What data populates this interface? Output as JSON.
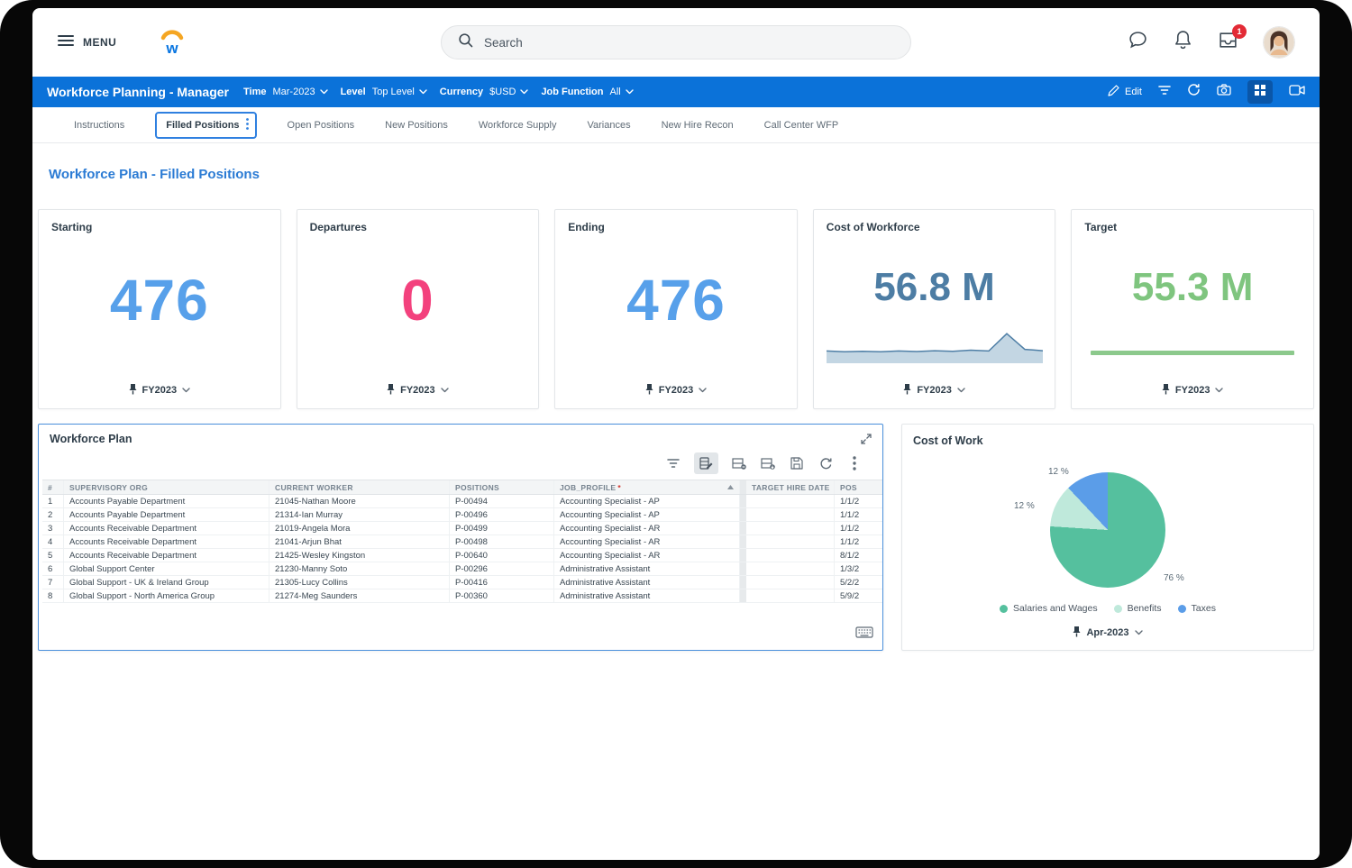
{
  "topbar": {
    "menu_label": "MENU",
    "search_placeholder": "Search",
    "inbox_badge": "1"
  },
  "bluebar": {
    "title": "Workforce Planning - Manager",
    "filters": [
      {
        "label": "Time",
        "value": "Mar-2023"
      },
      {
        "label": "Level",
        "value": "Top Level"
      },
      {
        "label": "Currency",
        "value": "$USD"
      },
      {
        "label": "Job Function",
        "value": "All"
      }
    ],
    "edit_label": "Edit"
  },
  "tabs": [
    {
      "label": "Instructions"
    },
    {
      "label": "Filled Positions"
    },
    {
      "label": "Open Positions"
    },
    {
      "label": "New Positions"
    },
    {
      "label": "Workforce Supply"
    },
    {
      "label": "Variances"
    },
    {
      "label": "New Hire Recon"
    },
    {
      "label": "Call Center WFP"
    }
  ],
  "page_title": "Workforce Plan - Filled Positions",
  "kpis": [
    {
      "title": "Starting",
      "value": "476",
      "color": "#57a0ea",
      "period": "FY2023"
    },
    {
      "title": "Departures",
      "value": "0",
      "color": "#f3417d",
      "period": "FY2023"
    },
    {
      "title": "Ending",
      "value": "476",
      "color": "#57a0ea",
      "period": "FY2023"
    },
    {
      "title": "Cost of Workforce",
      "value": "56.8 M",
      "color": "#4d7da4",
      "period": "FY2023"
    },
    {
      "title": "Target",
      "value": "55.3 M",
      "color": "#7fc57f",
      "period": "FY2023",
      "bar_color": "#8cc98c"
    }
  ],
  "workforce_plan": {
    "title": "Workforce Plan",
    "columns": [
      "#",
      "SUPERVISORY ORG",
      "CURRENT WORKER",
      "POSITIONS",
      "JOB_PROFILE",
      "TARGET HIRE DATE",
      "POS"
    ],
    "required_marker": "*",
    "rows": [
      {
        "num": "1",
        "org": "Accounts Payable Department",
        "worker": "21045-Nathan Moore",
        "position": "P-00494",
        "job_profile": "Accounting Specialist - AP",
        "target_hire_date": "",
        "pos": "1/1/2"
      },
      {
        "num": "2",
        "org": "Accounts Payable Department",
        "worker": "21314-Ian Murray",
        "position": "P-00496",
        "job_profile": "Accounting Specialist - AP",
        "target_hire_date": "",
        "pos": "1/1/2"
      },
      {
        "num": "3",
        "org": "Accounts Receivable Department",
        "worker": "21019-Angela Mora",
        "position": "P-00499",
        "job_profile": "Accounting Specialist - AR",
        "target_hire_date": "",
        "pos": "1/1/2"
      },
      {
        "num": "4",
        "org": "Accounts Receivable Department",
        "worker": "21041-Arjun Bhat",
        "position": "P-00498",
        "job_profile": "Accounting Specialist - AR",
        "target_hire_date": "",
        "pos": "1/1/2"
      },
      {
        "num": "5",
        "org": "Accounts Receivable Department",
        "worker": "21425-Wesley Kingston",
        "position": "P-00640",
        "job_profile": "Accounting Specialist - AR",
        "target_hire_date": "",
        "pos": "8/1/2"
      },
      {
        "num": "6",
        "org": "Global Support Center",
        "worker": "21230-Manny Soto",
        "position": "P-00296",
        "job_profile": "Administrative Assistant",
        "target_hire_date": "",
        "pos": "1/3/2"
      },
      {
        "num": "7",
        "org": "Global Support - UK & Ireland Group",
        "worker": "21305-Lucy Collins",
        "position": "P-00416",
        "job_profile": "Administrative Assistant",
        "target_hire_date": "",
        "pos": "5/2/2"
      },
      {
        "num": "8",
        "org": "Global Support - North America Group",
        "worker": "21274-Meg Saunders",
        "position": "P-00360",
        "job_profile": "Administrative Assistant",
        "target_hire_date": "",
        "pos": "5/9/2"
      }
    ]
  },
  "cost_of_work": {
    "title": "Cost of Work",
    "period": "Apr-2023"
  },
  "chart_data": [
    {
      "type": "pie",
      "title": "Cost of Work",
      "period": "Apr-2023",
      "legend_position": "bottom",
      "slices": [
        {
          "label": "Salaries and Wages",
          "pct": 76,
          "pct_label": "76 %",
          "color": "#55c09e"
        },
        {
          "label": "Benefits",
          "pct": 12,
          "pct_label": "12 %",
          "color": "#bfe9db"
        },
        {
          "label": "Taxes",
          "pct": 12,
          "pct_label": "12 %",
          "color": "#5b9de8"
        }
      ]
    },
    {
      "type": "area",
      "title": "Cost of Workforce trend (FY2023 sparkline)",
      "values": [
        3.2,
        2.9,
        3.1,
        2.9,
        3.2,
        3.0,
        3.3,
        3.1,
        3.5,
        3.2,
        9.6,
        3.8,
        3.3
      ],
      "line_color": "#4f7fa6",
      "fill_color": "#c3d6e3"
    }
  ]
}
